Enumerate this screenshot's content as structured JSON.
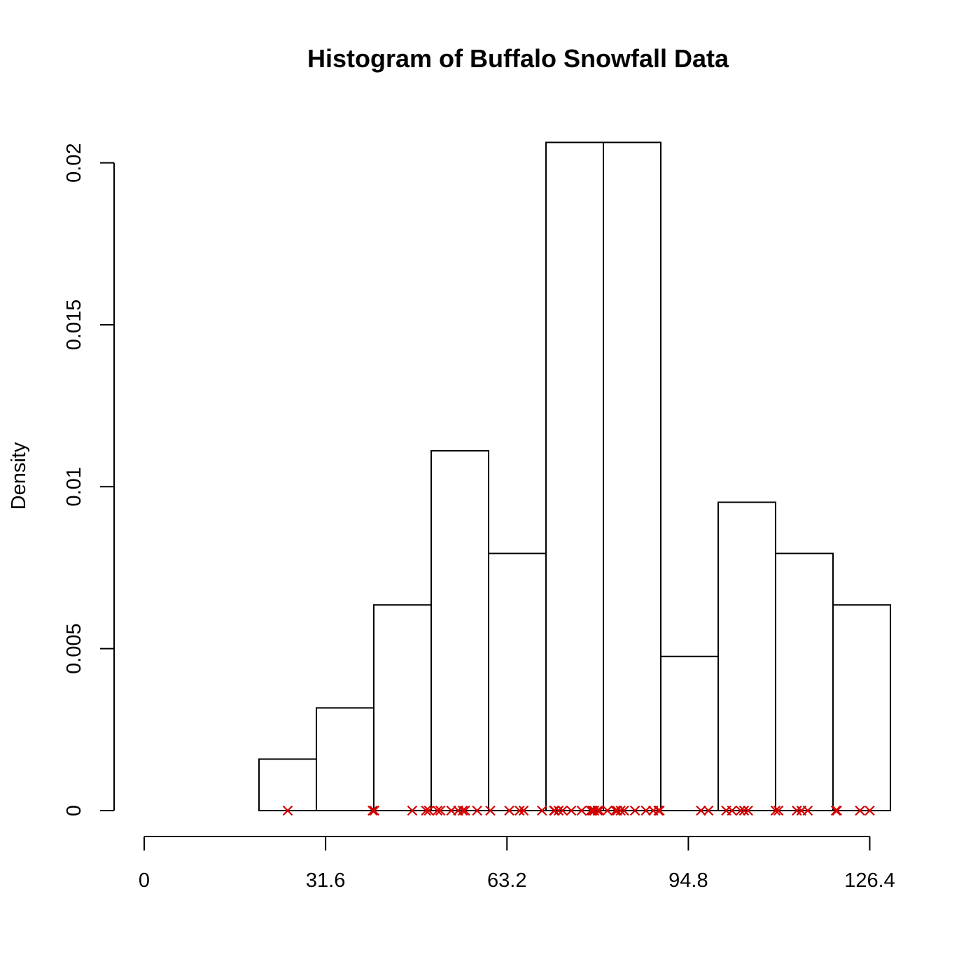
{
  "chart_data": {
    "type": "bar",
    "title": "Histogram of Buffalo Snowfall Data",
    "xlabel": "",
    "ylabel": "Density",
    "xlim": [
      0,
      130
    ],
    "ylim": [
      0,
      0.0207
    ],
    "x_ticks": [
      0,
      31.6,
      63.2,
      94.8,
      126.4
    ],
    "x_tick_labels": [
      "0",
      "31.6",
      "63.2",
      "94.8",
      "126.4"
    ],
    "y_ticks": [
      0,
      0.005,
      0.01,
      0.015,
      0.02
    ],
    "y_tick_labels": [
      "0",
      "0.005",
      "0.01",
      "0.015",
      "0.02"
    ],
    "grid": false,
    "bins": [
      {
        "left": 20,
        "right": 30,
        "density": 0.00159
      },
      {
        "left": 30,
        "right": 40,
        "density": 0.00317
      },
      {
        "left": 40,
        "right": 50,
        "density": 0.00635
      },
      {
        "left": 50,
        "right": 60,
        "density": 0.01111
      },
      {
        "left": 60,
        "right": 70,
        "density": 0.00794
      },
      {
        "left": 70,
        "right": 80,
        "density": 0.02063
      },
      {
        "left": 80,
        "right": 90,
        "density": 0.02063
      },
      {
        "left": 90,
        "right": 100,
        "density": 0.00476
      },
      {
        "left": 100,
        "right": 110,
        "density": 0.00952
      },
      {
        "left": 110,
        "right": 120,
        "density": 0.00794
      },
      {
        "left": 120,
        "right": 130,
        "density": 0.00635
      }
    ],
    "rug": {
      "marker": "x",
      "color": "#d40000",
      "values": [
        25.0,
        39.8,
        40.1,
        46.7,
        49.1,
        49.6,
        51.1,
        51.6,
        53.5,
        54.7,
        55.5,
        55.9,
        58.0,
        60.3,
        63.6,
        65.4,
        66.1,
        69.3,
        71.4,
        71.5,
        72.2,
        72.9,
        74.4,
        76.2,
        77.8,
        78.1,
        78.4,
        79.0,
        79.3,
        80.7,
        82.1,
        82.4,
        83.0,
        83.6,
        85.5,
        87.4,
        88.7,
        89.6,
        89.8,
        97.0,
        98.3,
        101.4,
        102.4,
        103.9,
        104.5,
        105.2,
        110.0,
        110.5,
        113.7,
        114.5,
        115.6,
        120.5,
        120.7,
        124.7,
        126.4
      ]
    }
  }
}
